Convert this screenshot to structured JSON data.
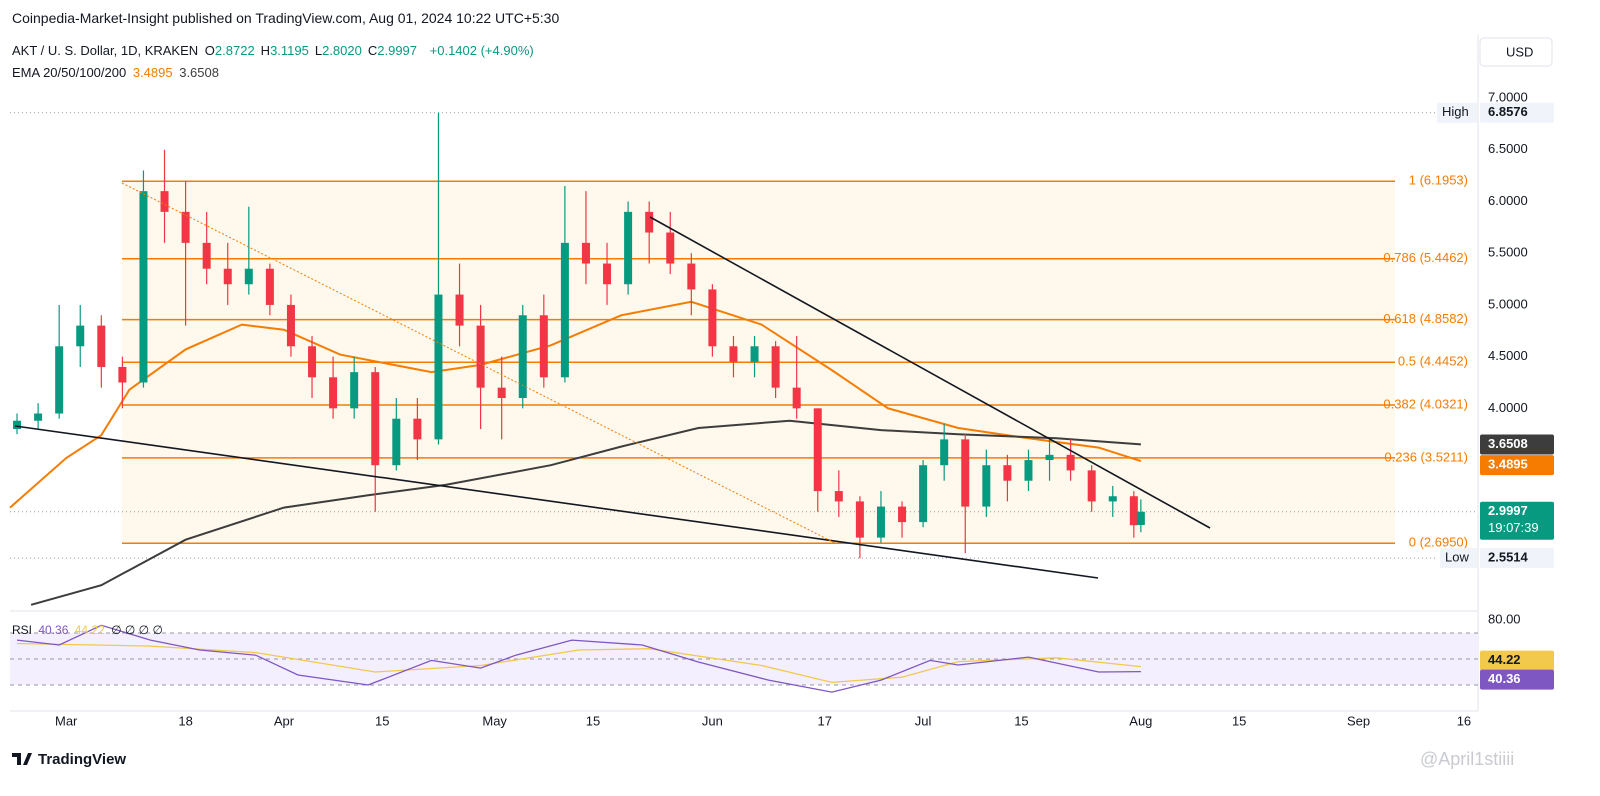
{
  "header": {
    "publisher": "Coinpedia-Market-Insight published on TradingView.com, Aug 01, 2024 10:22 UTC+5:30",
    "currency": "USD"
  },
  "chart_data": [
    {
      "type": "candlestick",
      "symbol": "AKT / U. S. Dollar, 1D, KRAKEN",
      "ohlc_legend": [
        {
          "label": "O",
          "value_label": "2.8722"
        },
        {
          "label": "H",
          "value_label": "3.1195"
        },
        {
          "label": "L",
          "value_label": "2.8020"
        },
        {
          "label": "C",
          "value_label": "2.9997"
        }
      ],
      "change": "+0.1402 (+4.90%)",
      "indicator": "EMA 20/50/100/200",
      "up_color": "#089981",
      "down_color": "#f23645",
      "x": [
        "2024-02-23",
        "2024-02-26",
        "2024-02-29",
        "2024-03-03",
        "2024-03-06",
        "2024-03-09",
        "2024-03-12",
        "2024-03-15",
        "2024-03-18",
        "2024-03-21",
        "2024-03-24",
        "2024-03-27",
        "2024-03-30",
        "2024-04-02",
        "2024-04-05",
        "2024-04-08",
        "2024-04-11",
        "2024-04-14",
        "2024-04-17",
        "2024-04-20",
        "2024-04-23",
        "2024-04-26",
        "2024-04-29",
        "2024-05-02",
        "2024-05-05",
        "2024-05-08",
        "2024-05-11",
        "2024-05-14",
        "2024-05-17",
        "2024-05-20",
        "2024-05-23",
        "2024-05-26",
        "2024-05-29",
        "2024-06-01",
        "2024-06-04",
        "2024-06-07",
        "2024-06-10",
        "2024-06-13",
        "2024-06-16",
        "2024-06-19",
        "2024-06-22",
        "2024-06-25",
        "2024-06-28",
        "2024-07-01",
        "2024-07-04",
        "2024-07-07",
        "2024-07-10",
        "2024-07-13",
        "2024-07-16",
        "2024-07-19",
        "2024-07-22",
        "2024-07-25",
        "2024-07-28",
        "2024-07-31",
        "2024-08-01"
      ],
      "open": [
        3.8,
        3.88,
        3.95,
        4.6,
        4.8,
        4.4,
        4.25,
        6.1,
        5.9,
        5.6,
        5.35,
        5.2,
        5.35,
        5.0,
        4.6,
        4.3,
        4.0,
        4.35,
        3.45,
        3.9,
        3.7,
        5.1,
        4.8,
        4.2,
        4.1,
        4.9,
        4.3,
        5.6,
        5.4,
        5.2,
        5.9,
        5.7,
        5.4,
        5.15,
        4.6,
        4.45,
        4.6,
        4.2,
        4.0,
        3.2,
        3.1,
        2.75,
        3.05,
        2.9,
        3.45,
        3.7,
        3.05,
        3.45,
        3.3,
        3.5,
        3.55,
        3.4,
        3.1,
        3.15,
        2.8722
      ],
      "high": [
        3.95,
        4.05,
        5.0,
        5.0,
        4.9,
        4.5,
        6.3,
        6.5,
        6.2,
        5.9,
        5.6,
        5.95,
        5.4,
        5.1,
        4.7,
        4.5,
        4.5,
        4.4,
        4.1,
        4.1,
        6.86,
        5.4,
        5.0,
        4.5,
        5.0,
        5.1,
        6.15,
        6.1,
        5.6,
        6.0,
        6.0,
        5.9,
        5.5,
        5.2,
        4.7,
        4.7,
        4.65,
        4.7,
        4.0,
        3.4,
        3.15,
        3.2,
        3.1,
        3.5,
        3.85,
        3.75,
        3.6,
        3.55,
        3.6,
        3.7,
        3.7,
        3.45,
        3.25,
        3.2,
        3.1195
      ],
      "low": [
        3.75,
        3.8,
        3.9,
        4.4,
        4.2,
        4.0,
        4.2,
        5.6,
        4.8,
        5.2,
        5.0,
        5.1,
        4.9,
        4.5,
        4.1,
        3.9,
        3.9,
        3.0,
        3.4,
        3.5,
        3.65,
        4.6,
        3.8,
        3.7,
        4.0,
        4.2,
        4.25,
        5.2,
        5.0,
        5.1,
        5.4,
        5.3,
        4.9,
        4.5,
        4.3,
        4.3,
        4.1,
        3.9,
        3.0,
        2.95,
        2.55,
        2.7,
        2.75,
        2.85,
        3.3,
        2.6,
        2.95,
        3.1,
        3.2,
        3.3,
        3.3,
        3.0,
        2.95,
        2.75,
        2.802
      ],
      "close": [
        3.88,
        3.95,
        4.6,
        4.8,
        4.4,
        4.25,
        6.1,
        5.9,
        5.6,
        5.35,
        5.2,
        5.35,
        5.0,
        4.6,
        4.3,
        4.0,
        4.35,
        3.45,
        3.9,
        3.7,
        5.1,
        4.8,
        4.2,
        4.1,
        4.9,
        4.3,
        5.6,
        5.4,
        5.2,
        5.9,
        5.7,
        5.4,
        5.15,
        4.6,
        4.45,
        4.6,
        4.2,
        4.0,
        3.2,
        3.1,
        2.75,
        3.05,
        2.9,
        3.45,
        3.7,
        3.05,
        3.45,
        3.3,
        3.5,
        3.55,
        3.4,
        3.1,
        3.15,
        2.87,
        2.9997
      ],
      "countdown": "19:07:39",
      "series": [
        {
          "color": "#f57c00",
          "x": [
            "2024-02-22",
            "2024-03-01",
            "2024-03-06",
            "2024-03-10",
            "2024-03-18",
            "2024-03-26",
            "2024-04-01",
            "2024-04-09",
            "2024-04-22",
            "2024-04-29",
            "2024-05-09",
            "2024-05-19",
            "2024-05-29",
            "2024-06-08",
            "2024-06-18",
            "2024-06-26",
            "2024-07-06",
            "2024-07-16",
            "2024-07-26",
            "2024-08-01"
          ],
          "values": [
            3.04,
            3.52,
            3.74,
            4.18,
            4.57,
            4.81,
            4.76,
            4.52,
            4.35,
            4.42,
            4.61,
            4.9,
            5.03,
            4.81,
            4.37,
            4.0,
            3.81,
            3.71,
            3.62,
            3.4895
          ]
        },
        {
          "color": "#3d3d3d",
          "x": [
            "2024-02-25",
            "2024-03-06",
            "2024-03-18",
            "2024-04-01",
            "2024-04-13",
            "2024-04-24",
            "2024-05-09",
            "2024-05-19",
            "2024-05-30",
            "2024-06-12",
            "2024-06-25",
            "2024-07-06",
            "2024-07-20",
            "2024-08-01"
          ],
          "values": [
            2.1,
            2.29,
            2.73,
            3.04,
            3.16,
            3.26,
            3.45,
            3.63,
            3.81,
            3.88,
            3.79,
            3.75,
            3.71,
            3.6508
          ]
        }
      ],
      "fib_color": "#f57c00",
      "fib_levels": [
        {
          "value": 6.1953,
          "label": "1 (6.1953)"
        },
        {
          "value": 5.4462,
          "label": "0.786 (5.4462)"
        },
        {
          "value": 4.8582,
          "label": "0.618 (4.8582)"
        },
        {
          "value": 4.4452,
          "label": "0.5 (4.4452)"
        },
        {
          "value": 4.0321,
          "label": "0.382 (4.0321)"
        },
        {
          "value": 3.5211,
          "label": "0.236 (3.5211)"
        },
        {
          "value": 2.695,
          "label": "0 (2.6950)"
        }
      ],
      "high_marker": {
        "label": "High",
        "value": 6.8576
      },
      "low_marker": {
        "label": "Low",
        "value": 2.5514
      },
      "xlim": [
        "2024-02-22",
        "2024-09-18"
      ],
      "xticks": [
        {
          "value": "2024-03-01",
          "label": "Mar"
        },
        {
          "value": "2024-03-18",
          "label": "18"
        },
        {
          "value": "2024-04-01",
          "label": "Apr"
        },
        {
          "value": "2024-04-15",
          "label": "15"
        },
        {
          "value": "2024-05-01",
          "label": "May"
        },
        {
          "value": "2024-05-15",
          "label": "15"
        },
        {
          "value": "2024-06-01",
          "label": "Jun"
        },
        {
          "value": "2024-06-17",
          "label": "17"
        },
        {
          "value": "2024-07-01",
          "label": "Jul"
        },
        {
          "value": "2024-07-15",
          "label": "15"
        },
        {
          "value": "2024-08-01",
          "label": "Aug"
        },
        {
          "value": "2024-08-15",
          "label": "15"
        },
        {
          "value": "2024-09-01",
          "label": "Sep"
        },
        {
          "value": "2024-09-16",
          "label": "16"
        }
      ],
      "ylim": [
        2.05,
        7.61
      ],
      "yticks": [
        {
          "value": 4,
          "label": "4.0000"
        },
        {
          "value": 4.5,
          "label": "4.5000"
        },
        {
          "value": 5,
          "label": "5.0000"
        },
        {
          "value": 5.5,
          "label": "5.5000"
        },
        {
          "value": 6,
          "label": "6.0000"
        },
        {
          "value": 6.5,
          "label": "6.5000"
        },
        {
          "value": 7,
          "label": "7.0000"
        }
      ]
    },
    {
      "type": "line",
      "title": "RSI",
      "legend": "∅ ∅ ∅ ∅",
      "series": [
        {
          "color": "#7e57c2",
          "x": [
            "2024-02-23",
            "2024-02-29",
            "2024-03-06",
            "2024-03-13",
            "2024-03-20",
            "2024-03-28",
            "2024-04-03",
            "2024-04-13",
            "2024-04-22",
            "2024-04-29",
            "2024-05-04",
            "2024-05-12",
            "2024-05-22",
            "2024-05-30",
            "2024-06-09",
            "2024-06-18",
            "2024-06-25",
            "2024-07-02",
            "2024-07-06",
            "2024-07-16",
            "2024-07-26",
            "2024-08-01"
          ],
          "values": [
            64.6,
            60.8,
            76,
            64.6,
            57,
            53,
            37.7,
            30,
            49,
            43,
            53,
            64.6,
            60.8,
            47.7,
            33.8,
            24.6,
            33.8,
            49,
            45.4,
            51.5,
            40,
            40.36
          ]
        },
        {
          "color": "#f2c94c",
          "x": [
            "2024-02-23",
            "2024-03-13",
            "2024-03-28",
            "2024-04-14",
            "2024-04-29",
            "2024-05-13",
            "2024-05-23",
            "2024-06-08",
            "2024-06-18",
            "2024-06-28",
            "2024-07-06",
            "2024-07-20",
            "2024-08-01"
          ],
          "values": [
            62,
            60,
            55,
            40,
            45,
            57,
            58,
            45,
            32,
            36,
            48,
            51,
            44.22
          ]
        }
      ],
      "band": [
        30,
        70
      ],
      "levels": [
        70,
        50,
        30
      ],
      "xlim": [
        "2024-02-22",
        "2024-09-18"
      ],
      "ylim": [
        10.8,
        86.2
      ],
      "yticks": [
        {
          "value": 80,
          "label": "80.00"
        }
      ]
    }
  ],
  "footer": {
    "brand": "TradingView",
    "watermark": "@April1stiiii"
  }
}
